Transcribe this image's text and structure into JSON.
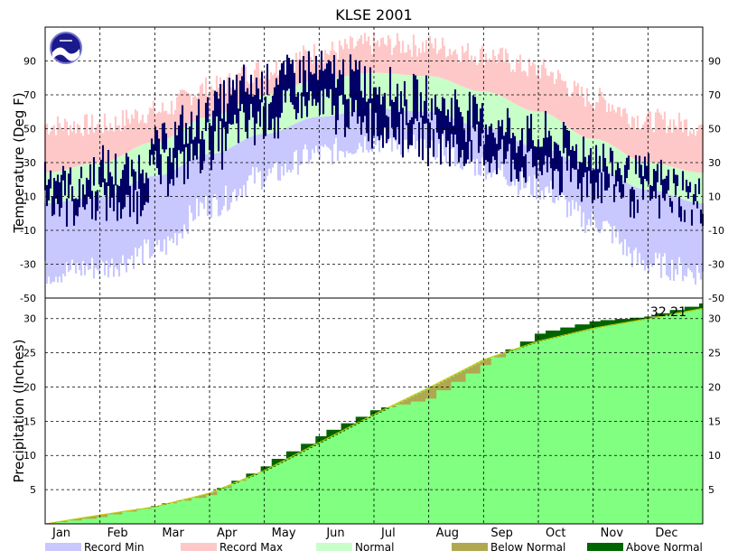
{
  "chart_data": {
    "type": "area",
    "title": "KLSE 2001",
    "months": [
      "Jan",
      "Feb",
      "Mar",
      "Apr",
      "May",
      "Jun",
      "Jul",
      "Aug",
      "Sep",
      "Oct",
      "Nov",
      "Dec"
    ],
    "temperature": {
      "ylabel": "Temperature (Deg F)",
      "ylim": [
        -50,
        110
      ],
      "ticks": [
        -50,
        -30,
        -10,
        10,
        30,
        50,
        70,
        90
      ],
      "grid": true,
      "record_max": [
        52,
        52,
        60,
        74,
        85,
        95,
        100,
        99,
        94,
        85,
        68,
        55,
        52
      ],
      "normal_high": [
        24,
        30,
        42,
        57,
        70,
        79,
        83,
        81,
        72,
        60,
        44,
        30,
        24
      ],
      "normal_low": [
        6,
        10,
        22,
        35,
        47,
        57,
        62,
        60,
        51,
        39,
        27,
        14,
        6
      ],
      "record_min": [
        -35,
        -32,
        -22,
        5,
        22,
        35,
        43,
        40,
        28,
        15,
        -5,
        -30,
        -35
      ],
      "observed_low": [
        5,
        2,
        5,
        0,
        20,
        25,
        35,
        45,
        50,
        58,
        55,
        50,
        45,
        40,
        35,
        30,
        28,
        22,
        18,
        15,
        10,
        5,
        5,
        0
      ],
      "observed_high": [
        30,
        20,
        30,
        28,
        45,
        55,
        70,
        80,
        85,
        90,
        88,
        85,
        80,
        72,
        70,
        65,
        55,
        50,
        48,
        40,
        32,
        25,
        20,
        10
      ]
    },
    "precipitation": {
      "ylabel": "Precipitation (Inches)",
      "ylim": [
        0,
        33
      ],
      "ticks": [
        5,
        10,
        15,
        20,
        25,
        30
      ],
      "total_label": "32.21",
      "normal_cumulative": [
        0,
        1.3,
        2.5,
        4.5,
        7.8,
        11.9,
        16.0,
        19.9,
        24.0,
        26.7,
        28.6,
        30.0,
        31.5
      ],
      "observed_cumulative": [
        0,
        1.0,
        2.6,
        4.2,
        8.4,
        12.8,
        16.6,
        18.3,
        23.2,
        27.8,
        29.6,
        30.3,
        32.21
      ]
    },
    "legend": [
      "Record Min",
      "Record Max",
      "Normal",
      "Below Normal",
      "Above Normal"
    ],
    "colors": {
      "record_min": "#c8c8ff",
      "record_max": "#ffc8c8",
      "normal": "#c8ffc8",
      "observed": "#000066",
      "precip_normal": "#80ff80",
      "below_normal": "#b0a850",
      "above_normal": "#006400"
    }
  }
}
